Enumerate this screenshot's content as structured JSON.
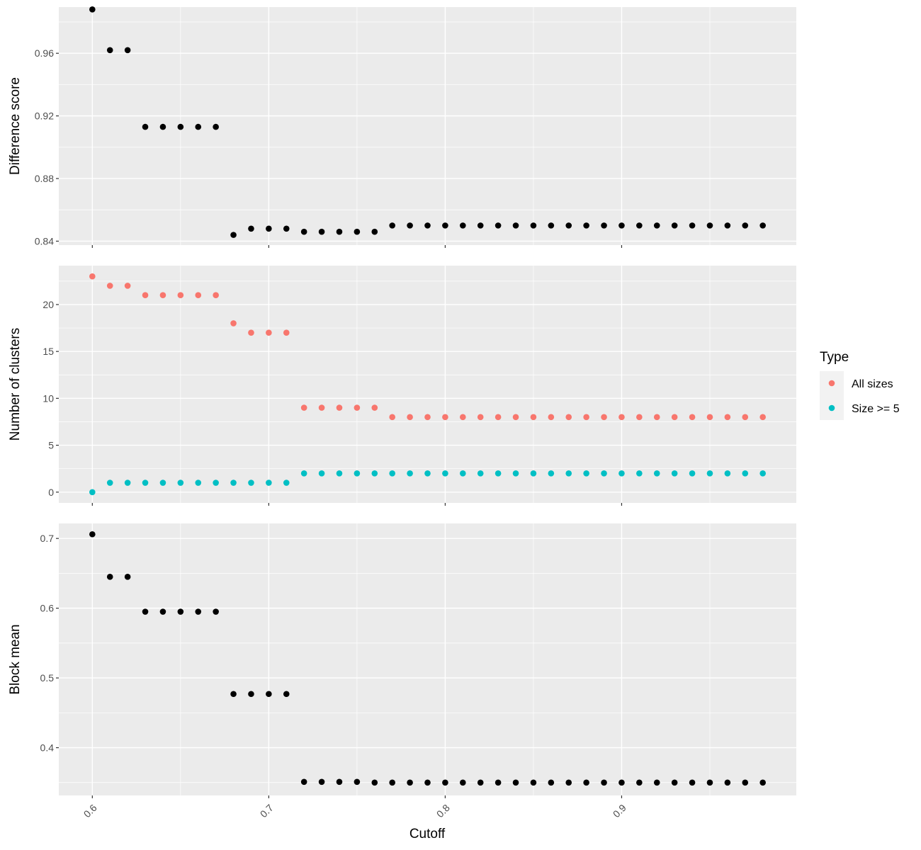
{
  "chart_data": {
    "type": "scatter",
    "xlabel": "Cutoff",
    "x_ticks": [
      "0.6",
      "0.7",
      "0.8",
      "0.9"
    ],
    "x": [
      0.6,
      0.61,
      0.62,
      0.63,
      0.64,
      0.65,
      0.66,
      0.67,
      0.68,
      0.69,
      0.7,
      0.71,
      0.72,
      0.73,
      0.74,
      0.75,
      0.76,
      0.77,
      0.78,
      0.79,
      0.8,
      0.81,
      0.82,
      0.83,
      0.84,
      0.85,
      0.86,
      0.87,
      0.88,
      0.89,
      0.9,
      0.91,
      0.92,
      0.93,
      0.94,
      0.95,
      0.96,
      0.97,
      0.98
    ],
    "xlim": [
      0.581,
      0.999
    ],
    "grid": true,
    "legend": {
      "title": "Type",
      "position": "right",
      "entries": [
        {
          "name": "All sizes",
          "color": "#f8766d"
        },
        {
          "name": "Size >= 5",
          "color": "#00bfc4"
        }
      ]
    },
    "panels": [
      {
        "ylabel": "Difference score",
        "ylim": [
          0.8375,
          0.9895
        ],
        "y_ticks": [
          "0.84",
          "0.88",
          "0.92",
          "0.96"
        ],
        "series": [
          {
            "color": "#000000",
            "values": [
              0.988,
              0.962,
              0.962,
              0.913,
              0.913,
              0.913,
              0.913,
              0.913,
              0.844,
              0.848,
              0.848,
              0.848,
              0.846,
              0.846,
              0.846,
              0.846,
              0.846,
              0.85,
              0.85,
              0.85,
              0.85,
              0.85,
              0.85,
              0.85,
              0.85,
              0.85,
              0.85,
              0.85,
              0.85,
              0.85,
              0.85,
              0.85,
              0.85,
              0.85,
              0.85,
              0.85,
              0.85,
              0.85,
              0.85
            ]
          }
        ]
      },
      {
        "ylabel": "Number of clusters",
        "ylim": [
          -1.15,
          24.15
        ],
        "y_ticks": [
          "0",
          "5",
          "10",
          "15",
          "20"
        ],
        "series": [
          {
            "name": "All sizes",
            "color": "#f8766d",
            "values": [
              23,
              22,
              22,
              21,
              21,
              21,
              21,
              21,
              18,
              17,
              17,
              17,
              9,
              9,
              9,
              9,
              9,
              8,
              8,
              8,
              8,
              8,
              8,
              8,
              8,
              8,
              8,
              8,
              8,
              8,
              8,
              8,
              8,
              8,
              8,
              8,
              8,
              8,
              8
            ]
          },
          {
            "name": "Size >= 5",
            "color": "#00bfc4",
            "values": [
              0,
              1,
              1,
              1,
              1,
              1,
              1,
              1,
              1,
              1,
              1,
              1,
              2,
              2,
              2,
              2,
              2,
              2,
              2,
              2,
              2,
              2,
              2,
              2,
              2,
              2,
              2,
              2,
              2,
              2,
              2,
              2,
              2,
              2,
              2,
              2,
              2,
              2,
              2
            ]
          }
        ]
      },
      {
        "ylabel": "Block mean",
        "ylim": [
          0.3315,
          0.7215
        ],
        "y_ticks": [
          "0.4",
          "0.5",
          "0.6",
          "0.7"
        ],
        "series": [
          {
            "color": "#000000",
            "values": [
              0.706,
              0.645,
              0.645,
              0.595,
              0.595,
              0.595,
              0.595,
              0.595,
              0.477,
              0.477,
              0.477,
              0.477,
              0.351,
              0.351,
              0.351,
              0.351,
              0.35,
              0.35,
              0.35,
              0.35,
              0.35,
              0.35,
              0.35,
              0.35,
              0.35,
              0.35,
              0.35,
              0.35,
              0.35,
              0.35,
              0.35,
              0.35,
              0.35,
              0.35,
              0.35,
              0.35,
              0.35,
              0.35,
              0.35
            ]
          }
        ]
      }
    ]
  }
}
